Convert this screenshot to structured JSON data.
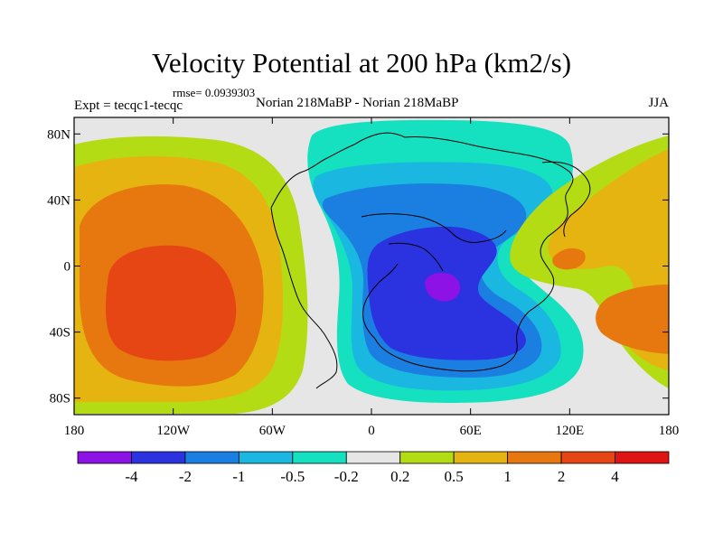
{
  "chart_data": {
    "type": "contour-map",
    "title": "Velocity Potential at 200 hPa (km2/s)",
    "rmse": "rmse= 0.0939303",
    "left_label": "Expt = tecqc1-tecqc",
    "center_label": "Norian 218MaBP - Norian 218MaBP",
    "right_label": "JJA",
    "x_ticks": [
      "180",
      "120W",
      "60W",
      "0",
      "60E",
      "120E",
      "180"
    ],
    "y_ticks": [
      "80N",
      "40N",
      "0",
      "40S",
      "80S"
    ],
    "xlim_deg": [
      -180,
      180
    ],
    "ylim_deg": [
      -90,
      90
    ],
    "colorbar_labels": [
      "-4",
      "-2",
      "-1",
      "-0.5",
      "-0.2",
      "0.2",
      "0.5",
      "1",
      "2",
      "4"
    ],
    "colorbar_colors": [
      "#8c12e6",
      "#2b32e0",
      "#1a7fe0",
      "#1ab8e0",
      "#15e0c0",
      "#e6e6e6",
      "#b4dc14",
      "#e6b410",
      "#e6780f",
      "#e64614",
      "#e01414"
    ]
  }
}
